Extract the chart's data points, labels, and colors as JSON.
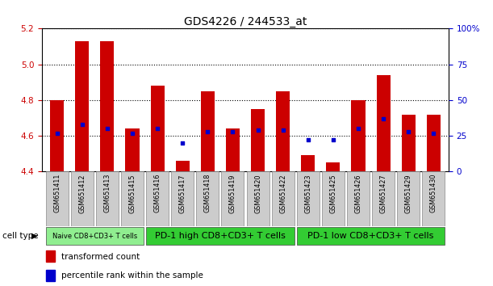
{
  "title": "GDS4226 / 244533_at",
  "samples": [
    "GSM651411",
    "GSM651412",
    "GSM651413",
    "GSM651415",
    "GSM651416",
    "GSM651417",
    "GSM651418",
    "GSM651419",
    "GSM651420",
    "GSM651422",
    "GSM651423",
    "GSM651425",
    "GSM651426",
    "GSM651427",
    "GSM651429",
    "GSM651430"
  ],
  "transformed_count": [
    4.8,
    5.13,
    5.13,
    4.64,
    4.88,
    4.46,
    4.85,
    4.64,
    4.75,
    4.85,
    4.49,
    4.45,
    4.8,
    4.94,
    4.72,
    4.72
  ],
  "percentile_rank": [
    27,
    33,
    30,
    27,
    30,
    20,
    28,
    28,
    29,
    29,
    22,
    22,
    30,
    37,
    28,
    27
  ],
  "ylim_left": [
    4.4,
    5.2
  ],
  "ylim_right": [
    0,
    100
  ],
  "yticks_left": [
    4.4,
    4.6,
    4.8,
    5.0,
    5.2
  ],
  "yticks_right": [
    0,
    25,
    50,
    75,
    100
  ],
  "bar_color": "#CC0000",
  "dot_color": "#0000CC",
  "bar_bottom": 4.4,
  "cell_type_groups": [
    {
      "label": "Naive CD8+CD3+ T cells",
      "start": 0,
      "end": 4,
      "color": "#90EE90",
      "fontsize": 6
    },
    {
      "label": "PD-1 high CD8+CD3+ T cells",
      "start": 4,
      "end": 10,
      "color": "#33CC33",
      "fontsize": 8
    },
    {
      "label": "PD-1 low CD8+CD3+ T cells",
      "start": 10,
      "end": 16,
      "color": "#33CC33",
      "fontsize": 8
    }
  ],
  "legend_items": [
    {
      "label": "transformed count",
      "color": "#CC0000"
    },
    {
      "label": "percentile rank within the sample",
      "color": "#0000CC"
    }
  ],
  "cell_type_label": "cell type",
  "axis_color_left": "#CC0000",
  "axis_color_right": "#0000CC"
}
